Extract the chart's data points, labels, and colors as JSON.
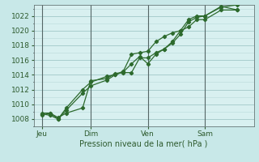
{
  "bg_color": "#c8e8e8",
  "plot_bg_color": "#d8f0f0",
  "grid_major_color": "#a0c8c8",
  "grid_minor_color": "#b8dada",
  "line_color": "#2d6a2d",
  "marker_color": "#2d6a2d",
  "xlabel_text": "Pression niveau de la mer( hPa )",
  "ylim": [
    1007.0,
    1023.5
  ],
  "yticks": [
    1008,
    1010,
    1012,
    1014,
    1016,
    1018,
    1020,
    1022
  ],
  "xtick_labels": [
    "Jeu",
    "Dim",
    "Ven",
    "Sam"
  ],
  "xtick_positions": [
    0.5,
    3.5,
    7.0,
    10.5
  ],
  "vline_positions": [
    0.5,
    3.5,
    7.0,
    10.5
  ],
  "xlim": [
    0.0,
    13.5
  ],
  "line1_x": [
    0.5,
    1.0,
    1.5,
    2.0,
    3.0,
    3.5,
    4.5,
    5.0,
    5.5,
    6.0,
    6.5,
    7.0,
    7.5,
    8.0,
    8.5,
    9.0,
    9.5,
    10.0,
    10.5,
    11.5,
    12.5
  ],
  "line1_y": [
    1008.5,
    1008.8,
    1008.2,
    1008.8,
    1009.5,
    1013.2,
    1013.5,
    1014.2,
    1014.3,
    1014.3,
    1016.3,
    1016.3,
    1017.0,
    1017.5,
    1018.3,
    1019.5,
    1021.2,
    1021.8,
    1022.0,
    1023.2,
    1023.5
  ],
  "line2_x": [
    0.5,
    1.0,
    1.5,
    2.0,
    3.0,
    3.5,
    4.5,
    5.0,
    5.5,
    6.0,
    6.5,
    7.0,
    7.5,
    8.0,
    8.5,
    9.0,
    9.5,
    10.0,
    10.5,
    11.5,
    12.5
  ],
  "line2_y": [
    1008.7,
    1008.5,
    1008.0,
    1009.5,
    1012.0,
    1013.0,
    1013.8,
    1014.0,
    1014.5,
    1016.8,
    1017.0,
    1017.2,
    1018.5,
    1019.2,
    1019.7,
    1020.0,
    1021.5,
    1022.0,
    1022.0,
    1023.3,
    1022.8
  ],
  "line3_x": [
    0.5,
    1.0,
    1.5,
    2.0,
    3.0,
    3.5,
    4.5,
    5.0,
    5.5,
    6.0,
    6.5,
    7.0,
    7.5,
    8.0,
    8.5,
    9.0,
    9.5,
    10.0,
    10.5,
    11.5,
    12.5
  ],
  "line3_y": [
    1008.8,
    1008.8,
    1008.0,
    1009.2,
    1011.5,
    1012.5,
    1013.3,
    1014.0,
    1014.4,
    1015.5,
    1016.5,
    1015.5,
    1016.8,
    1017.5,
    1018.5,
    1020.0,
    1020.5,
    1021.5,
    1021.5,
    1022.8,
    1022.8
  ]
}
